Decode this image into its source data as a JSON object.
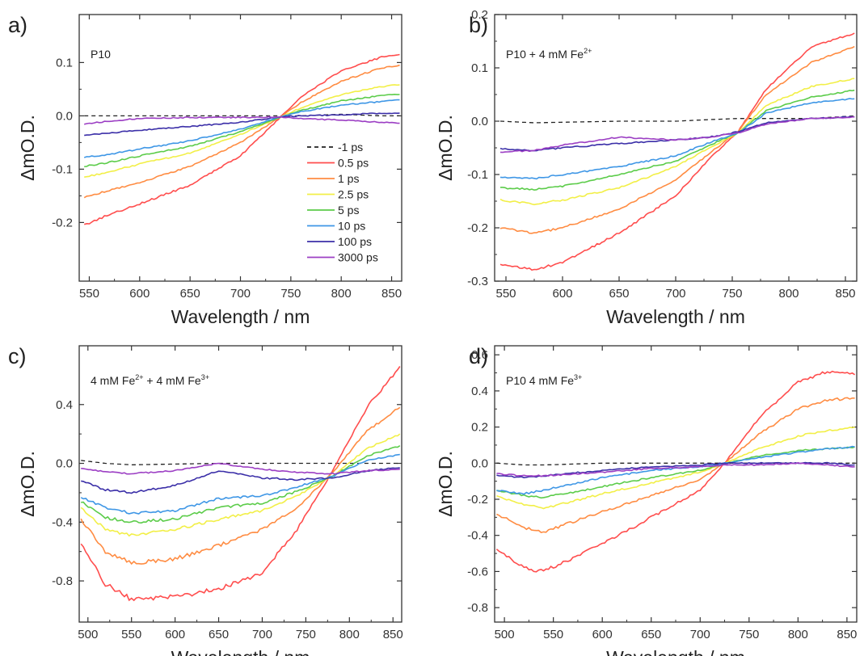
{
  "figure": {
    "panels": [
      {
        "letter": "a)",
        "ylabel": "ΔmO.D.",
        "xlabel": "Wavelength / nm"
      },
      {
        "letter": "b)",
        "ylabel": "ΔmO.D.",
        "xlabel": "Wavelength / nm"
      },
      {
        "letter": "c)",
        "ylabel": "ΔmO.D.",
        "xlabel": "Wavelength / nm"
      },
      {
        "letter": "d)",
        "ylabel": "ΔmO.D.",
        "xlabel": "Wavelength / nm"
      }
    ],
    "series_colors": [
      "#222222",
      "#ff4d4d",
      "#ff8c42",
      "#f2ef47",
      "#5ccc4a",
      "#3f97e6",
      "#3b2fa8",
      "#9c3fc4"
    ]
  },
  "chart_data": [
    {
      "type": "line",
      "panel": "a",
      "annotation": "P10",
      "xlabel": "Wavelength / nm",
      "ylabel": "ΔmO.D.",
      "xlim": [
        540,
        860
      ],
      "ylim": [
        -0.31,
        0.19
      ],
      "xticks": [
        550,
        600,
        650,
        700,
        750,
        800,
        850
      ],
      "xtick_labels": [
        "550",
        "600",
        "650",
        "700",
        "750",
        "800",
        "850"
      ],
      "yticks": [
        -0.2,
        -0.1,
        0.0,
        0.1
      ],
      "ytick_labels": [
        "-0.2",
        "-0.1",
        "0.0",
        "0.1"
      ],
      "legend": {
        "placement": "inside bottom-right",
        "entries": [
          "-1 ps",
          "0.5 ps",
          "1 ps",
          "2.5 ps",
          "5 ps",
          "10 ps",
          "100 ps",
          "3000 ps"
        ]
      },
      "x": [
        545,
        570,
        600,
        650,
        700,
        740,
        760,
        800,
        840,
        858
      ],
      "series": [
        {
          "name": "-1 ps",
          "values": [
            0.0,
            0.0,
            0.0,
            0.0,
            0.0,
            0.0,
            0.0,
            0.003,
            0.0,
            0.0
          ]
        },
        {
          "name": "0.5 ps",
          "values": [
            -0.205,
            -0.185,
            -0.165,
            -0.13,
            -0.075,
            -0.002,
            0.035,
            0.085,
            0.11,
            0.115
          ]
        },
        {
          "name": "1 ps",
          "values": [
            -0.152,
            -0.14,
            -0.125,
            -0.095,
            -0.05,
            -0.002,
            0.025,
            0.065,
            0.09,
            0.095
          ]
        },
        {
          "name": "2.5 ps",
          "values": [
            -0.115,
            -0.105,
            -0.09,
            -0.07,
            -0.035,
            -0.002,
            0.015,
            0.04,
            0.055,
            0.058
          ]
        },
        {
          "name": "5 ps",
          "values": [
            -0.095,
            -0.087,
            -0.075,
            -0.057,
            -0.03,
            -0.002,
            0.01,
            0.028,
            0.038,
            0.04
          ]
        },
        {
          "name": "10 ps",
          "values": [
            -0.078,
            -0.072,
            -0.062,
            -0.047,
            -0.025,
            -0.002,
            0.008,
            0.02,
            0.027,
            0.03
          ]
        },
        {
          "name": "100 ps",
          "values": [
            -0.037,
            -0.032,
            -0.027,
            -0.02,
            -0.012,
            -0.002,
            0.0,
            0.002,
            0.005,
            0.005
          ]
        },
        {
          "name": "3000 ps",
          "values": [
            -0.015,
            -0.01,
            -0.005,
            -0.003,
            -0.003,
            -0.002,
            -0.005,
            -0.008,
            -0.012,
            -0.014
          ]
        }
      ]
    },
    {
      "type": "line",
      "panel": "b",
      "annotation": "P10 + 4 mM Fe",
      "annotation_superscript": "2+",
      "xlabel": "Wavelength / nm",
      "ylabel": "ΔmO.D.",
      "xlim": [
        540,
        860
      ],
      "ylim": [
        -0.3,
        0.2
      ],
      "xticks": [
        550,
        600,
        650,
        700,
        750,
        800,
        850
      ],
      "xtick_labels": [
        "550",
        "600",
        "650",
        "700",
        "750",
        "800",
        "850"
      ],
      "yticks": [
        -0.3,
        -0.2,
        -0.1,
        0.0,
        0.1,
        0.2
      ],
      "ytick_labels": [
        "-0.3",
        "-0.2",
        "-0.1",
        "0.0",
        "0.1",
        "0.2"
      ],
      "x": [
        545,
        575,
        600,
        650,
        700,
        730,
        755,
        780,
        820,
        858
      ],
      "series": [
        {
          "name": "-1 ps",
          "values": [
            0.0,
            -0.003,
            -0.002,
            0.0,
            0.0,
            0.003,
            0.005,
            0.005,
            0.005,
            0.01
          ]
        },
        {
          "name": "0.5 ps",
          "values": [
            -0.27,
            -0.278,
            -0.265,
            -0.21,
            -0.14,
            -0.07,
            -0.02,
            0.06,
            0.14,
            0.165
          ]
        },
        {
          "name": "1 ps",
          "values": [
            -0.2,
            -0.21,
            -0.2,
            -0.165,
            -0.11,
            -0.06,
            -0.02,
            0.05,
            0.11,
            0.14
          ]
        },
        {
          "name": "2.5 ps",
          "values": [
            -0.148,
            -0.155,
            -0.148,
            -0.125,
            -0.085,
            -0.05,
            -0.022,
            0.03,
            0.065,
            0.08
          ]
        },
        {
          "name": "5 ps",
          "values": [
            -0.125,
            -0.128,
            -0.122,
            -0.1,
            -0.075,
            -0.045,
            -0.022,
            0.02,
            0.045,
            0.058
          ]
        },
        {
          "name": "10 ps",
          "values": [
            -0.105,
            -0.108,
            -0.1,
            -0.085,
            -0.065,
            -0.04,
            -0.022,
            0.015,
            0.035,
            0.042
          ]
        },
        {
          "name": "100 ps",
          "values": [
            -0.052,
            -0.055,
            -0.05,
            -0.042,
            -0.035,
            -0.03,
            -0.02,
            -0.003,
            0.005,
            0.008
          ]
        },
        {
          "name": "3000 ps",
          "values": [
            -0.058,
            -0.055,
            -0.045,
            -0.03,
            -0.035,
            -0.03,
            -0.022,
            -0.005,
            0.005,
            0.008
          ]
        }
      ]
    },
    {
      "type": "line",
      "panel": "c",
      "annotation_parts": [
        "4 mM Fe",
        "2+",
        " + 4 mM Fe",
        "3+"
      ],
      "xlabel": "Wavelength / nm",
      "ylabel": "ΔmO.D.",
      "xlim": [
        490,
        860
      ],
      "ylim": [
        -1.08,
        0.8
      ],
      "xticks": [
        500,
        550,
        600,
        650,
        700,
        750,
        800,
        850
      ],
      "xtick_labels": [
        "500",
        "550",
        "600",
        "650",
        "700",
        "750",
        "800",
        "850"
      ],
      "yticks": [
        -0.8,
        -0.4,
        0.0,
        0.4
      ],
      "ytick_labels": [
        "-0.8",
        "-0.4",
        "0.0",
        "0.4"
      ],
      "x": [
        492,
        520,
        550,
        600,
        650,
        700,
        740,
        780,
        820,
        858
      ],
      "series": [
        {
          "name": "-1 ps",
          "values": [
            0.02,
            0.0,
            -0.01,
            -0.005,
            0.0,
            0.0,
            0.0,
            0.0,
            0.0,
            0.0
          ]
        },
        {
          "name": "0.5 ps",
          "values": [
            -0.55,
            -0.82,
            -0.93,
            -0.91,
            -0.85,
            -0.75,
            -0.45,
            -0.06,
            0.38,
            0.66
          ]
        },
        {
          "name": "1 ps",
          "values": [
            -0.38,
            -0.6,
            -0.68,
            -0.65,
            -0.56,
            -0.45,
            -0.3,
            -0.07,
            0.22,
            0.38
          ]
        },
        {
          "name": "2.5 ps",
          "values": [
            -0.3,
            -0.45,
            -0.49,
            -0.45,
            -0.38,
            -0.32,
            -0.22,
            -0.09,
            0.1,
            0.2
          ]
        },
        {
          "name": "5 ps",
          "values": [
            -0.26,
            -0.37,
            -0.4,
            -0.38,
            -0.3,
            -0.27,
            -0.19,
            -0.09,
            0.05,
            0.12
          ]
        },
        {
          "name": "10 ps",
          "values": [
            -0.23,
            -0.3,
            -0.34,
            -0.32,
            -0.24,
            -0.22,
            -0.16,
            -0.09,
            0.02,
            0.06
          ]
        },
        {
          "name": "100 ps",
          "values": [
            -0.12,
            -0.18,
            -0.2,
            -0.15,
            -0.05,
            -0.1,
            -0.11,
            -0.1,
            -0.05,
            -0.03
          ]
        },
        {
          "name": "3000 ps",
          "values": [
            -0.03,
            -0.06,
            -0.07,
            -0.05,
            0.0,
            -0.04,
            -0.06,
            -0.07,
            -0.05,
            -0.04
          ]
        }
      ]
    },
    {
      "type": "line",
      "panel": "d",
      "annotation": "P10 4 mM Fe",
      "annotation_superscript": "3+",
      "xlabel": "Wavelength / nm",
      "ylabel": "ΔmO.D.",
      "xlim": [
        490,
        860
      ],
      "ylim": [
        -0.88,
        0.65
      ],
      "xticks": [
        500,
        550,
        600,
        650,
        700,
        750,
        800,
        850
      ],
      "xtick_labels": [
        "500",
        "550",
        "600",
        "650",
        "700",
        "750",
        "800",
        "850"
      ],
      "yticks": [
        -0.8,
        -0.6,
        -0.4,
        -0.2,
        0.0,
        0.2,
        0.4,
        0.6
      ],
      "ytick_labels": [
        "-0.8",
        "-0.6",
        "-0.4",
        "-0.2",
        "0.0",
        "0.2",
        "0.4",
        "0.6"
      ],
      "x": [
        492,
        520,
        540,
        600,
        650,
        700,
        725,
        760,
        800,
        830,
        858
      ],
      "series": [
        {
          "name": "-1 ps",
          "values": [
            0.0,
            -0.01,
            -0.01,
            0.0,
            0.0,
            0.0,
            0.0,
            0.0,
            0.0,
            0.0,
            0.0
          ]
        },
        {
          "name": "0.5 ps",
          "values": [
            -0.48,
            -0.58,
            -0.6,
            -0.45,
            -0.3,
            -0.15,
            0.0,
            0.25,
            0.45,
            0.51,
            0.49
          ]
        },
        {
          "name": "1 ps",
          "values": [
            -0.28,
            -0.36,
            -0.38,
            -0.27,
            -0.18,
            -0.09,
            0.0,
            0.16,
            0.3,
            0.35,
            0.36
          ]
        },
        {
          "name": "2.5 ps",
          "values": [
            -0.18,
            -0.23,
            -0.25,
            -0.17,
            -0.11,
            -0.05,
            0.0,
            0.08,
            0.15,
            0.18,
            0.2
          ]
        },
        {
          "name": "5 ps",
          "values": [
            -0.15,
            -0.18,
            -0.19,
            -0.13,
            -0.08,
            -0.04,
            0.0,
            0.04,
            0.07,
            0.08,
            0.09
          ]
        },
        {
          "name": "10 ps",
          "values": [
            -0.15,
            -0.17,
            -0.15,
            -0.08,
            -0.04,
            -0.02,
            0.0,
            0.03,
            0.06,
            0.08,
            0.09
          ]
        },
        {
          "name": "100 ps",
          "values": [
            -0.07,
            -0.08,
            -0.07,
            -0.04,
            -0.02,
            -0.01,
            0.0,
            0.0,
            0.0,
            0.0,
            -0.01
          ]
        },
        {
          "name": "3000 ps",
          "values": [
            -0.06,
            -0.07,
            -0.07,
            -0.05,
            -0.03,
            -0.02,
            -0.01,
            -0.01,
            0.0,
            -0.01,
            -0.02
          ]
        }
      ]
    }
  ]
}
